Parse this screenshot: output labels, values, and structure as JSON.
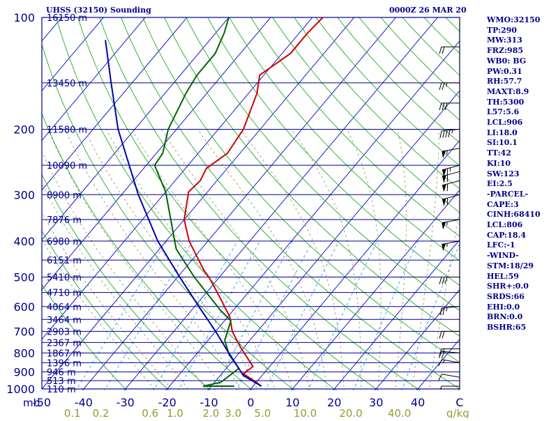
{
  "title": "UHSS (32150) Sounding",
  "datetime": "0000Z 26 MAR 20",
  "indices": [
    "WMO:32150",
    "TP:290",
    "MW:313",
    "FRZ:985",
    "WB0: BG",
    "PW:0.31",
    "RH:57.7",
    "MAXT:8.9",
    "TH:5300",
    "L57:5.6",
    "LCL:906",
    "LI:18.0",
    "SI:10.1",
    "TT:42",
    "KI:10",
    "SW:123",
    "EI:2.5",
    "-PARCEL-",
    "CAPE:3",
    "CINH:68410",
    "LCL:806",
    "CAP:18.4",
    "LFC:-1",
    "-WIND-",
    "STM:18/29",
    "HEL:59",
    "SHR+:0.0",
    "SRDS:66",
    "EHI:0.0",
    "BRN:0.0",
    "BSHR:65"
  ],
  "colors": {
    "isobar": "#00008b",
    "isotherm": "#0000cd",
    "dry_adiabat": "#22aa22",
    "moist_adiabat": "#999966",
    "mixing_ratio": "#3399ff",
    "temperature": "#cc0000",
    "dewpoint": "#006400",
    "parcel": "#0000aa",
    "label_text": "#00008b",
    "mixing_label": "#999933"
  },
  "chart_data": {
    "type": "line",
    "title": "UHSS (32150) Sounding",
    "pressure_axis": {
      "label": "mb",
      "scale": "log",
      "range": [
        1000,
        100
      ],
      "ticks": [
        100,
        200,
        300,
        400,
        500,
        600,
        700,
        800,
        900,
        1000
      ]
    },
    "temperature_axis": {
      "range": [
        -50,
        50
      ],
      "tick_labels": [
        "-50",
        "-40",
        "-30",
        "-20",
        "-10",
        "0",
        "10",
        "20",
        "30",
        "40",
        "C"
      ],
      "unit": "C"
    },
    "mixing_ratio_axis": {
      "unit": "g/kg",
      "tick_labels": [
        "0.1",
        "0.2",
        "0.6",
        "1.0",
        "2.0",
        "3.0",
        "5.0",
        "10.0",
        "20.0",
        "40.0"
      ]
    },
    "height_labels": [
      {
        "p": 1000,
        "label": "110 m"
      },
      {
        "p": 950,
        "label": "513 m"
      },
      {
        "p": 900,
        "label": "946 m"
      },
      {
        "p": 850,
        "label": "1396 m"
      },
      {
        "p": 800,
        "label": "1867 m"
      },
      {
        "p": 750,
        "label": "2367 m"
      },
      {
        "p": 700,
        "label": "2903 m"
      },
      {
        "p": 650,
        "label": "3464 m"
      },
      {
        "p": 600,
        "label": "4064 m"
      },
      {
        "p": 550,
        "label": "4710 m"
      },
      {
        "p": 500,
        "label": "5410 m"
      },
      {
        "p": 450,
        "label": "6151 m"
      },
      {
        "p": 400,
        "label": "6980 m"
      },
      {
        "p": 350,
        "label": "7876 m"
      },
      {
        "p": 300,
        "label": "8900 m"
      },
      {
        "p": 250,
        "label": "10090 m"
      },
      {
        "p": 200,
        "label": "11580 m"
      },
      {
        "p": 150,
        "label": "13450 m"
      },
      {
        "p": 100,
        "label": "16150 m"
      }
    ],
    "series": [
      {
        "key": "temperature",
        "points": [
          {
            "p": 983,
            "t": 2.0
          },
          {
            "p": 960,
            "t": 0.0
          },
          {
            "p": 910,
            "t": -4.8
          },
          {
            "p": 870,
            "t": -4.0
          },
          {
            "p": 770,
            "t": -11.0
          },
          {
            "p": 700,
            "t": -16.0
          },
          {
            "p": 640,
            "t": -19.5
          },
          {
            "p": 565,
            "t": -26.0
          },
          {
            "p": 500,
            "t": -32.5
          },
          {
            "p": 480,
            "t": -35.0
          },
          {
            "p": 400,
            "t": -44.5
          },
          {
            "p": 350,
            "t": -50.0
          },
          {
            "p": 295,
            "t": -54.5
          },
          {
            "p": 275,
            "t": -54.0
          },
          {
            "p": 255,
            "t": -55.0
          },
          {
            "p": 232,
            "t": -53.0
          },
          {
            "p": 200,
            "t": -54.0
          },
          {
            "p": 160,
            "t": -58.0
          },
          {
            "p": 143,
            "t": -61.0
          },
          {
            "p": 125,
            "t": -58.0
          },
          {
            "p": 110,
            "t": -58.0
          },
          {
            "p": 100,
            "t": -57.5
          }
        ]
      },
      {
        "key": "dewpoint",
        "points": [
          {
            "p": 983,
            "t": -4.5
          },
          {
            "p": 983,
            "t": -12.0
          },
          {
            "p": 960,
            "t": -8.5
          },
          {
            "p": 880,
            "t": -7.0
          },
          {
            "p": 810,
            "t": -12.0
          },
          {
            "p": 740,
            "t": -16.0
          },
          {
            "p": 655,
            "t": -18.5
          },
          {
            "p": 615,
            "t": -23.0
          },
          {
            "p": 500,
            "t": -36.0
          },
          {
            "p": 420,
            "t": -46.0
          },
          {
            "p": 295,
            "t": -60.0
          },
          {
            "p": 250,
            "t": -68.0
          },
          {
            "p": 232,
            "t": -68.5
          },
          {
            "p": 200,
            "t": -72.0
          },
          {
            "p": 160,
            "t": -75.0
          },
          {
            "p": 143,
            "t": -76.0
          },
          {
            "p": 125,
            "t": -76.0
          },
          {
            "p": 110,
            "t": -78.0
          },
          {
            "p": 100,
            "t": -80.0
          }
        ]
      },
      {
        "key": "parcel",
        "points": [
          {
            "p": 983,
            "t": 2.0
          },
          {
            "p": 920,
            "t": -4.5
          },
          {
            "p": 850,
            "t": -9.0
          },
          {
            "p": 800,
            "t": -12.5
          },
          {
            "p": 700,
            "t": -20.0
          },
          {
            "p": 600,
            "t": -29.0
          },
          {
            "p": 500,
            "t": -39.5
          },
          {
            "p": 400,
            "t": -52.0
          },
          {
            "p": 300,
            "t": -66.0
          },
          {
            "p": 200,
            "t": -84.0
          },
          {
            "p": 150,
            "t": -95.0
          },
          {
            "p": 115,
            "t": -105.0
          }
        ]
      }
    ],
    "wind_barbs": [
      {
        "p": 983,
        "dir": 270,
        "spd": 5
      },
      {
        "p": 930,
        "dir": 280,
        "spd": 10
      },
      {
        "p": 850,
        "dir": 280,
        "spd": 15
      },
      {
        "p": 800,
        "dir": 275,
        "spd": 20
      },
      {
        "p": 780,
        "dir": 270,
        "spd": 15
      },
      {
        "p": 700,
        "dir": 270,
        "spd": 20
      },
      {
        "p": 600,
        "dir": 265,
        "spd": 25
      },
      {
        "p": 500,
        "dir": 270,
        "spd": 30
      },
      {
        "p": 400,
        "dir": 260,
        "spd": 55
      },
      {
        "p": 350,
        "dir": 260,
        "spd": 55
      },
      {
        "p": 300,
        "dir": 255,
        "spd": 60
      },
      {
        "p": 275,
        "dir": 255,
        "spd": 60
      },
      {
        "p": 260,
        "dir": 255,
        "spd": 60
      },
      {
        "p": 250,
        "dir": 255,
        "spd": 65
      },
      {
        "p": 225,
        "dir": 260,
        "spd": 55
      },
      {
        "p": 200,
        "dir": 265,
        "spd": 45
      },
      {
        "p": 170,
        "dir": 270,
        "spd": 30
      },
      {
        "p": 150,
        "dir": 270,
        "spd": 25
      },
      {
        "p": 120,
        "dir": 270,
        "spd": 20
      }
    ],
    "grid": true
  }
}
